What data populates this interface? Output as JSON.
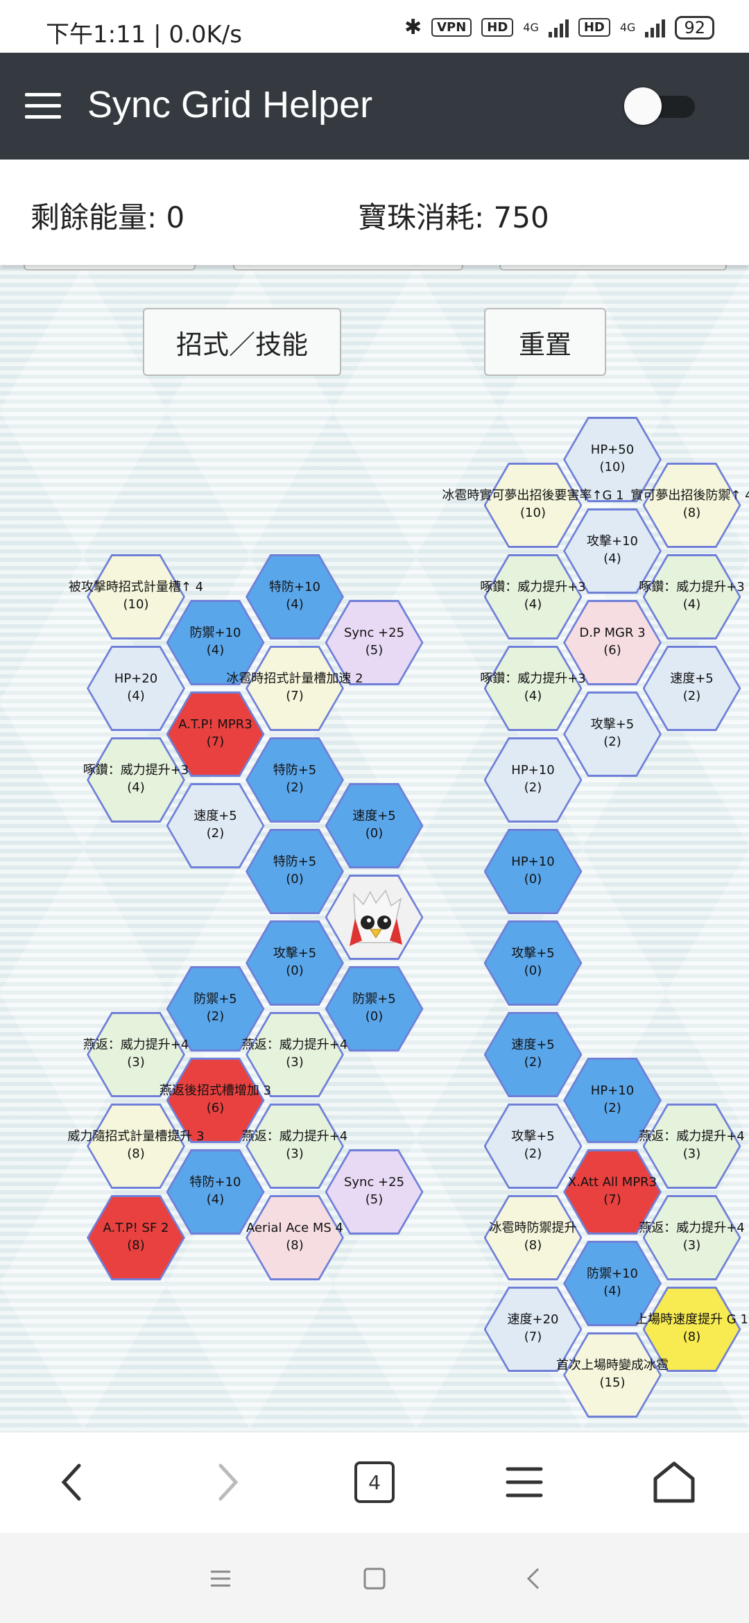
{
  "status_bar": {
    "time": "下午1:11 | 0.0K/s",
    "vpn": "VPN",
    "hd1": "HD",
    "net1": "4G",
    "hd2": "HD",
    "net2": "4G",
    "battery": "92"
  },
  "app_bar": {
    "title": "Sync Grid Helper",
    "toggle_on": false
  },
  "info": {
    "energy": "剩餘能量: 0",
    "orb_cost": "寶珠消耗: 750"
  },
  "buttons": {
    "moves": "招式／技能",
    "reset": "重置"
  },
  "colors": {
    "header": "#343a40",
    "blue": "#5aa6ea",
    "red": "#e8413f",
    "yellow": "#f8eb52",
    "light_blue": "#dfeaf4",
    "light_yellow": "#f6f6dc",
    "light_green": "#e5f2dc",
    "light_purple": "#e8daf4",
    "light_pink": "#f6dde2",
    "hex_border": "#6f7fd8"
  },
  "tiles": [
    {
      "name": "HP+50",
      "cost": "(10)",
      "color": "light_blue"
    },
    {
      "name": "冰雹時實可夢出招後要害率↑G 1",
      "cost": "(10)",
      "color": "light_yellow"
    },
    {
      "name": "實可夢出招後防禦↑ 4",
      "cost": "(8)",
      "color": "light_yellow"
    },
    {
      "name": "攻擊+10",
      "cost": "(4)",
      "color": "light_blue"
    },
    {
      "name": "被攻擊時招式計量槽↑ 4",
      "cost": "(10)",
      "color": "light_yellow"
    },
    {
      "name": "特防+10",
      "cost": "(4)",
      "color": "blue"
    },
    {
      "name": "啄鑽：威力提升+3",
      "cost": "(4)",
      "color": "light_green"
    },
    {
      "name": "啄鑽：威力提升+3",
      "cost": "(4)",
      "color": "light_green"
    },
    {
      "name": "防禦+10",
      "cost": "(4)",
      "color": "blue"
    },
    {
      "name": "Sync +25",
      "cost": "(5)",
      "color": "light_purple"
    },
    {
      "name": "D.P MGR 3",
      "cost": "(6)",
      "color": "light_pink"
    },
    {
      "name": "HP+20",
      "cost": "(4)",
      "color": "light_blue"
    },
    {
      "name": "冰雹時招式計量槽加速 2",
      "cost": "(7)",
      "color": "light_yellow"
    },
    {
      "name": "啄鑽：威力提升+3",
      "cost": "(4)",
      "color": "light_green"
    },
    {
      "name": "速度+5",
      "cost": "(2)",
      "color": "light_blue"
    },
    {
      "name": "A.T.P! MPR3",
      "cost": "(7)",
      "color": "red"
    },
    {
      "name": "攻擊+5",
      "cost": "(2)",
      "color": "light_blue"
    },
    {
      "name": "啄鑽：威力提升+3",
      "cost": "(4)",
      "color": "light_green"
    },
    {
      "name": "特防+5",
      "cost": "(2)",
      "color": "blue"
    },
    {
      "name": "HP+10",
      "cost": "(2)",
      "color": "light_blue"
    },
    {
      "name": "速度+5",
      "cost": "(2)",
      "color": "light_blue"
    },
    {
      "name": "速度+5",
      "cost": "(0)",
      "color": "blue"
    },
    {
      "name": "特防+5",
      "cost": "(0)",
      "color": "blue"
    },
    {
      "name": "HP+10",
      "cost": "(0)",
      "color": "blue"
    },
    {
      "name": "攻擊+5",
      "cost": "(0)",
      "color": "blue"
    },
    {
      "name": "攻擊+5",
      "cost": "(0)",
      "color": "blue"
    },
    {
      "name": "防禦+5",
      "cost": "(2)",
      "color": "blue"
    },
    {
      "name": "防禦+5",
      "cost": "(0)",
      "color": "blue"
    },
    {
      "name": "燕返：威力提升+4",
      "cost": "(3)",
      "color": "light_green"
    },
    {
      "name": "燕返：威力提升+4",
      "cost": "(3)",
      "color": "light_green"
    },
    {
      "name": "速度+5",
      "cost": "(2)",
      "color": "blue"
    },
    {
      "name": "燕返後招式槽增加 3",
      "cost": "(6)",
      "color": "red"
    },
    {
      "name": "HP+10",
      "cost": "(2)",
      "color": "blue"
    },
    {
      "name": "威力隨招式計量槽提升 3",
      "cost": "(8)",
      "color": "light_yellow"
    },
    {
      "name": "燕返：威力提升+4",
      "cost": "(3)",
      "color": "light_green"
    },
    {
      "name": "攻擊+5",
      "cost": "(2)",
      "color": "light_blue"
    },
    {
      "name": "燕返：威力提升+4",
      "cost": "(3)",
      "color": "light_green"
    },
    {
      "name": "特防+10",
      "cost": "(4)",
      "color": "blue"
    },
    {
      "name": "Sync +25",
      "cost": "(5)",
      "color": "light_purple"
    },
    {
      "name": "X.Att All MPR3",
      "cost": "(7)",
      "color": "red"
    },
    {
      "name": "A.T.P! SF 2",
      "cost": "(8)",
      "color": "red"
    },
    {
      "name": "Aerial Ace MS 4",
      "cost": "(8)",
      "color": "light_pink"
    },
    {
      "name": "冰雹時防禦提升",
      "cost": "(8)",
      "color": "light_yellow"
    },
    {
      "name": "燕返：威力提升+4",
      "cost": "(3)",
      "color": "light_green"
    },
    {
      "name": "防禦+10",
      "cost": "(4)",
      "color": "blue"
    },
    {
      "name": "速度+20",
      "cost": "(7)",
      "color": "light_blue"
    },
    {
      "name": "上場時速度提升 G 1",
      "cost": "(8)",
      "color": "yellow"
    },
    {
      "name": "首次上場時變成冰雹",
      "cost": "(15)",
      "color": "light_yellow"
    }
  ],
  "nav": {
    "tabs_count": "4"
  }
}
